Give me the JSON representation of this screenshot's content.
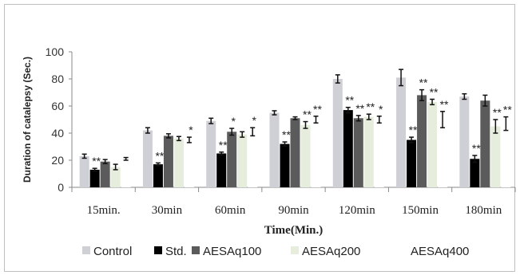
{
  "chart_data": {
    "type": "bar",
    "title": "",
    "xlabel": "Time(Min.)",
    "ylabel": "Duration of catalepsy (Sec.)",
    "ylim": [
      0,
      100
    ],
    "yticks": [
      "0",
      "20",
      "40",
      "60",
      "80",
      "100"
    ],
    "grid": false,
    "legend_position": "bottom",
    "categories": [
      "15min.",
      "30min",
      "60min",
      "90min",
      "120min",
      "150min",
      "180min"
    ],
    "series": [
      {
        "name": "Control",
        "color": "#cfcfd6",
        "values": [
          23,
          42,
          49,
          55,
          80,
          81,
          67
        ],
        "errors": [
          1.5,
          2,
          2,
          1.5,
          3,
          6,
          2
        ],
        "significance": [
          "",
          "",
          "",
          "",
          "",
          "",
          ""
        ]
      },
      {
        "name": "Std.",
        "color": "#000000",
        "values": [
          13,
          17,
          25,
          32,
          57,
          35,
          21
        ],
        "errors": [
          1,
          1,
          1,
          1.5,
          2,
          2,
          2.5
        ],
        "significance": [
          "**",
          "**",
          "**",
          "**",
          "**",
          "**",
          "**"
        ]
      },
      {
        "name": "AESAq100",
        "color": "#5b5b5b",
        "values": [
          19,
          38,
          41,
          51,
          51,
          68,
          64
        ],
        "errors": [
          1.5,
          1.5,
          2.5,
          1,
          2,
          4,
          4
        ],
        "significance": [
          "",
          "",
          "*",
          "",
          "**",
          "**",
          ""
        ]
      },
      {
        "name": "AESAq200",
        "color": "#e6eddc",
        "values": [
          15,
          36,
          39,
          46,
          52,
          63,
          45
        ],
        "errors": [
          2,
          1.5,
          2,
          2.5,
          2,
          2,
          5
        ],
        "significance": [
          "",
          "",
          "",
          "**",
          "**",
          "**",
          "**"
        ]
      },
      {
        "name": "AESAq400",
        "color": "#ffffff",
        "values": [
          21,
          35,
          41,
          50,
          50,
          50,
          47
        ],
        "errors": [
          1,
          2,
          3,
          2.5,
          2.5,
          6,
          5
        ],
        "significance": [
          "",
          "*",
          "*",
          "**",
          "*",
          "**",
          "**"
        ]
      }
    ]
  }
}
